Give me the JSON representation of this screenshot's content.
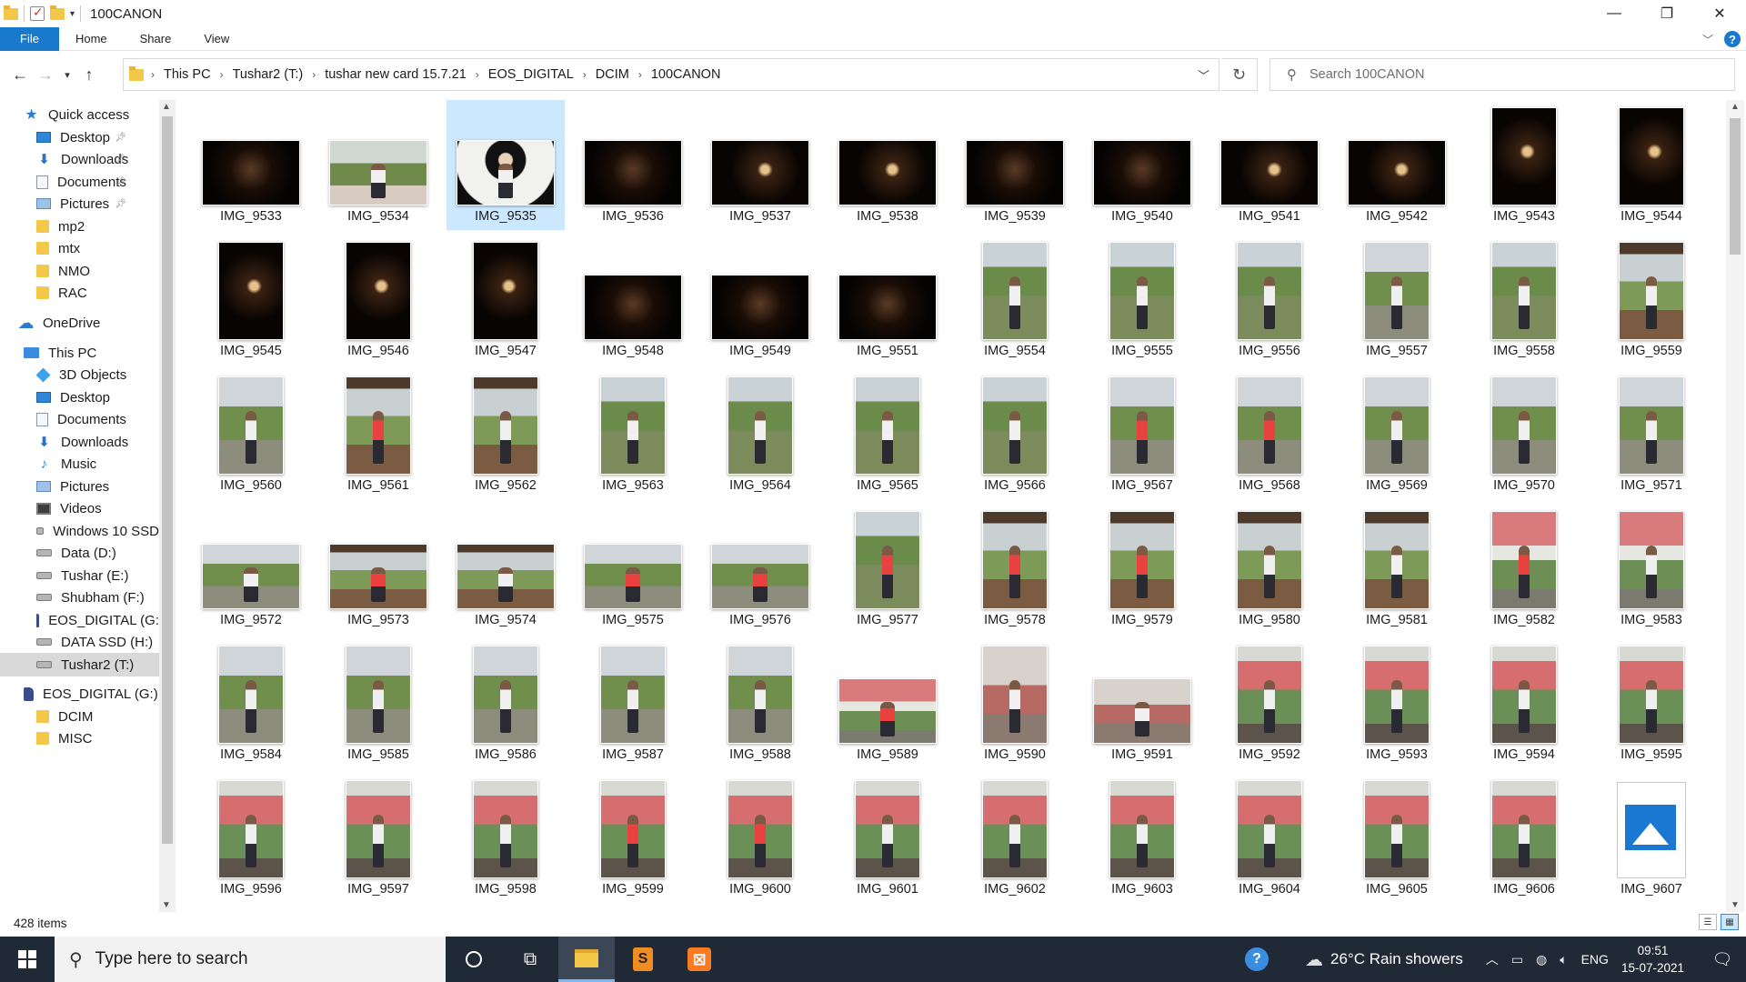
{
  "window": {
    "title": "100CANON",
    "controls": {
      "minimize": "—",
      "maximize": "❐",
      "close": "✕"
    }
  },
  "ribbon": {
    "tabs": [
      "File",
      "Home",
      "Share",
      "View"
    ]
  },
  "address": {
    "breadcrumbs": [
      "This PC",
      "Tushar2 (T:)",
      "tushar new card 15.7.21",
      "EOS_DIGITAL",
      "DCIM",
      "100CANON"
    ],
    "search_placeholder": "Search 100CANON"
  },
  "sidebar": {
    "items": [
      {
        "label": "Quick access",
        "icon": "star-icon",
        "pinned": false
      },
      {
        "label": "Desktop",
        "icon": "desktop-icon",
        "pinned": true
      },
      {
        "label": "Downloads",
        "icon": "download-icon",
        "pinned": true
      },
      {
        "label": "Documents",
        "icon": "documents-icon",
        "pinned": true
      },
      {
        "label": "Pictures",
        "icon": "pictures-icon",
        "pinned": true
      },
      {
        "label": "mp2",
        "icon": "folder-icon",
        "pinned": false
      },
      {
        "label": "mtx",
        "icon": "folder-icon",
        "pinned": false
      },
      {
        "label": "NMO",
        "icon": "folder-icon",
        "pinned": false
      },
      {
        "label": "RAC",
        "icon": "folder-icon",
        "pinned": false
      },
      {
        "label": "OneDrive",
        "icon": "cloud-icon",
        "pinned": false
      },
      {
        "label": "This PC",
        "icon": "computer-icon",
        "pinned": false
      },
      {
        "label": "3D Objects",
        "icon": "3d-objects-icon",
        "pinned": false
      },
      {
        "label": "Desktop",
        "icon": "desktop-icon",
        "pinned": false
      },
      {
        "label": "Documents",
        "icon": "documents-icon",
        "pinned": false
      },
      {
        "label": "Downloads",
        "icon": "download-icon",
        "pinned": false
      },
      {
        "label": "Music",
        "icon": "music-icon",
        "pinned": false
      },
      {
        "label": "Pictures",
        "icon": "pictures-icon",
        "pinned": false
      },
      {
        "label": "Videos",
        "icon": "videos-icon",
        "pinned": false
      },
      {
        "label": "Windows 10 SSD",
        "icon": "drive-icon",
        "pinned": false
      },
      {
        "label": "Data (D:)",
        "icon": "drive-icon",
        "pinned": false
      },
      {
        "label": "Tushar (E:)",
        "icon": "drive-icon",
        "pinned": false
      },
      {
        "label": "Shubham (F:)",
        "icon": "drive-icon",
        "pinned": false
      },
      {
        "label": "EOS_DIGITAL (G:",
        "icon": "sd-card-icon",
        "pinned": false
      },
      {
        "label": "DATA SSD (H:)",
        "icon": "drive-icon",
        "pinned": false
      },
      {
        "label": "Tushar2 (T:)",
        "icon": "drive-icon",
        "pinned": false,
        "selected": true
      },
      {
        "label": "EOS_DIGITAL (G:)",
        "icon": "sd-card-icon",
        "pinned": false
      },
      {
        "label": "DCIM",
        "icon": "folder-icon",
        "pinned": false
      },
      {
        "label": "MISC",
        "icon": "folder-icon",
        "pinned": false
      }
    ]
  },
  "files": [
    {
      "name": "IMG_9533",
      "orient": "h",
      "style": "dark"
    },
    {
      "name": "IMG_9534",
      "orient": "h",
      "style": "tree"
    },
    {
      "name": "IMG_9535",
      "orient": "h",
      "style": "white",
      "selected": true
    },
    {
      "name": "IMG_9536",
      "orient": "h",
      "style": "dark"
    },
    {
      "name": "IMG_9537",
      "orient": "h",
      "style": "dark2"
    },
    {
      "name": "IMG_9538",
      "orient": "h",
      "style": "dark2"
    },
    {
      "name": "IMG_9539",
      "orient": "h",
      "style": "dark"
    },
    {
      "name": "IMG_9540",
      "orient": "h",
      "style": "dark"
    },
    {
      "name": "IMG_9541",
      "orient": "h",
      "style": "dark2"
    },
    {
      "name": "IMG_9542",
      "orient": "h",
      "style": "dark2"
    },
    {
      "name": "IMG_9543",
      "orient": "v",
      "style": "dark2"
    },
    {
      "name": "IMG_9544",
      "orient": "v",
      "style": "dark2"
    },
    {
      "name": "IMG_9545",
      "orient": "v",
      "style": "dark2"
    },
    {
      "name": "IMG_9546",
      "orient": "v",
      "style": "dark2"
    },
    {
      "name": "IMG_9547",
      "orient": "v",
      "style": "dark2"
    },
    {
      "name": "IMG_9548",
      "orient": "h",
      "style": "dark"
    },
    {
      "name": "IMG_9549",
      "orient": "h",
      "style": "dark"
    },
    {
      "name": "IMG_9551",
      "orient": "h",
      "style": "dark"
    },
    {
      "name": "IMG_9554",
      "orient": "v",
      "style": "green"
    },
    {
      "name": "IMG_9555",
      "orient": "v",
      "style": "green"
    },
    {
      "name": "IMG_9556",
      "orient": "v",
      "style": "green"
    },
    {
      "name": "IMG_9557",
      "orient": "v",
      "style": "green2"
    },
    {
      "name": "IMG_9558",
      "orient": "v",
      "style": "green"
    },
    {
      "name": "IMG_9559",
      "orient": "v",
      "style": "porch"
    },
    {
      "name": "IMG_9560",
      "orient": "v",
      "style": "green2"
    },
    {
      "name": "IMG_9561",
      "orient": "v",
      "style": "porch",
      "red": true
    },
    {
      "name": "IMG_9562",
      "orient": "v",
      "style": "porch"
    },
    {
      "name": "IMG_9563",
      "orient": "v",
      "style": "green"
    },
    {
      "name": "IMG_9564",
      "orient": "v",
      "style": "green"
    },
    {
      "name": "IMG_9565",
      "orient": "v",
      "style": "green"
    },
    {
      "name": "IMG_9566",
      "orient": "v",
      "style": "green"
    },
    {
      "name": "IMG_9567",
      "orient": "v",
      "style": "green2",
      "red": true
    },
    {
      "name": "IMG_9568",
      "orient": "v",
      "style": "green2",
      "red": true
    },
    {
      "name": "IMG_9569",
      "orient": "v",
      "style": "green2"
    },
    {
      "name": "IMG_9570",
      "orient": "v",
      "style": "green2"
    },
    {
      "name": "IMG_9571",
      "orient": "v",
      "style": "green2"
    },
    {
      "name": "IMG_9572",
      "orient": "h",
      "style": "green2"
    },
    {
      "name": "IMG_9573",
      "orient": "h",
      "style": "porch",
      "red": true
    },
    {
      "name": "IMG_9574",
      "orient": "h",
      "style": "porch"
    },
    {
      "name": "IMG_9575",
      "orient": "h",
      "style": "green2",
      "red": true
    },
    {
      "name": "IMG_9576",
      "orient": "h",
      "style": "green2",
      "red": true
    },
    {
      "name": "IMG_9577",
      "orient": "v",
      "style": "green",
      "red": true
    },
    {
      "name": "IMG_9578",
      "orient": "v",
      "style": "porch",
      "red": true
    },
    {
      "name": "IMG_9579",
      "orient": "v",
      "style": "porch",
      "red": true
    },
    {
      "name": "IMG_9580",
      "orient": "v",
      "style": "porch"
    },
    {
      "name": "IMG_9581",
      "orient": "v",
      "style": "porch"
    },
    {
      "name": "IMG_9582",
      "orient": "v",
      "style": "pink",
      "red": true
    },
    {
      "name": "IMG_9583",
      "orient": "v",
      "style": "pink"
    },
    {
      "name": "IMG_9584",
      "orient": "v",
      "style": "green2"
    },
    {
      "name": "IMG_9585",
      "orient": "v",
      "style": "green2"
    },
    {
      "name": "IMG_9586",
      "orient": "v",
      "style": "green2"
    },
    {
      "name": "IMG_9587",
      "orient": "v",
      "style": "green2"
    },
    {
      "name": "IMG_9588",
      "orient": "v",
      "style": "green2"
    },
    {
      "name": "IMG_9589",
      "orient": "h",
      "style": "pink",
      "red": true
    },
    {
      "name": "IMG_9590",
      "orient": "v",
      "style": "inside"
    },
    {
      "name": "IMG_9591",
      "orient": "h",
      "style": "inside"
    },
    {
      "name": "IMG_9592",
      "orient": "v",
      "style": "pinkroof"
    },
    {
      "name": "IMG_9593",
      "orient": "v",
      "style": "pinkroof"
    },
    {
      "name": "IMG_9594",
      "orient": "v",
      "style": "pinkroof"
    },
    {
      "name": "IMG_9595",
      "orient": "v",
      "style": "pinkroof"
    },
    {
      "name": "IMG_9596",
      "orient": "v",
      "style": "pinkroof"
    },
    {
      "name": "IMG_9597",
      "orient": "v",
      "style": "pinkroof"
    },
    {
      "name": "IMG_9598",
      "orient": "v",
      "style": "pinkroof"
    },
    {
      "name": "IMG_9599",
      "orient": "v",
      "style": "pinkroof",
      "red": true
    },
    {
      "name": "IMG_9600",
      "orient": "v",
      "style": "pinkroof",
      "red": true
    },
    {
      "name": "IMG_9601",
      "orient": "v",
      "style": "pinkroof"
    },
    {
      "name": "IMG_9602",
      "orient": "v",
      "style": "pinkroof"
    },
    {
      "name": "IMG_9603",
      "orient": "v",
      "style": "pinkroof"
    },
    {
      "name": "IMG_9604",
      "orient": "v",
      "style": "pinkroof"
    },
    {
      "name": "IMG_9605",
      "orient": "v",
      "style": "pinkroof"
    },
    {
      "name": "IMG_9606",
      "orient": "v",
      "style": "pinkroof"
    },
    {
      "name": "IMG_9607",
      "orient": "v",
      "style": "placeholder"
    }
  ],
  "status": {
    "item_count": "428 items"
  },
  "taskbar": {
    "search_placeholder": "Type here to search",
    "weather": "26°C  Rain showers",
    "language": "ENG",
    "time": "09:51",
    "date": "15-07-2021"
  }
}
